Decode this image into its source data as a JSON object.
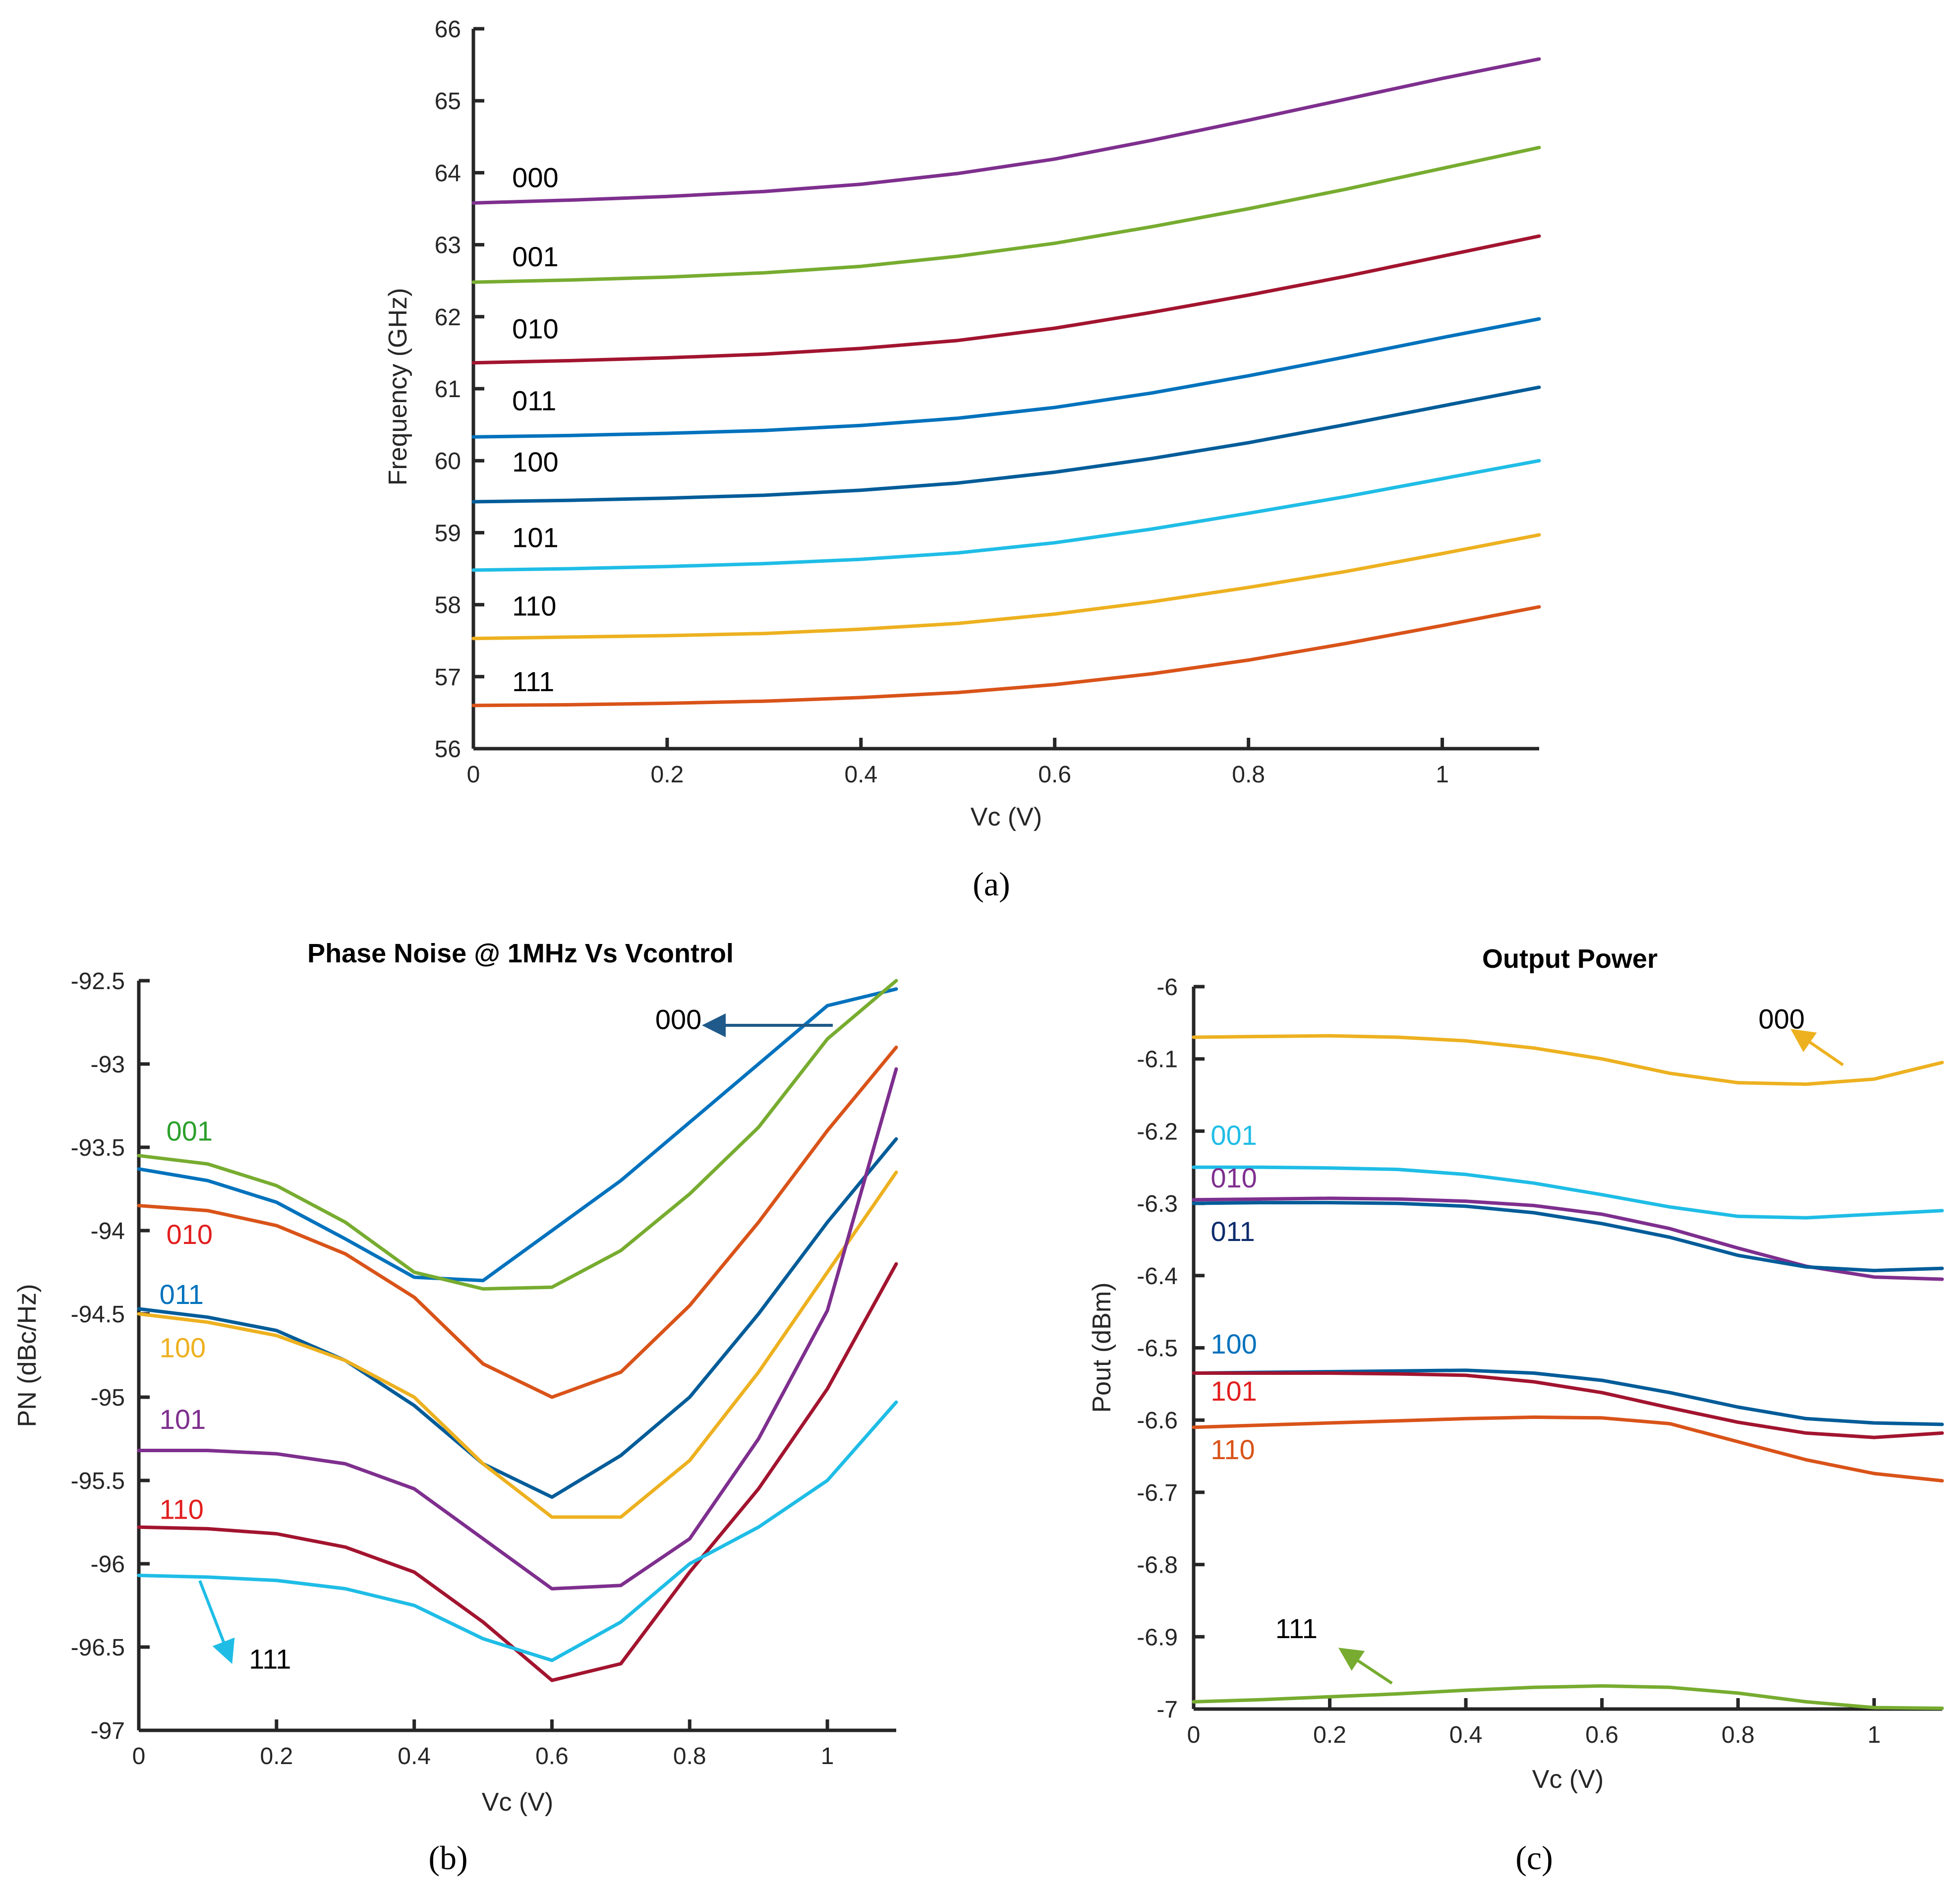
{
  "chart_data": [
    {
      "type": "line",
      "panel_label": "(a)",
      "title": "",
      "xlabel": "Vc (V)",
      "ylabel": "Frequency (GHz)",
      "xlim": [
        0,
        1.1
      ],
      "ylim": [
        56,
        66
      ],
      "xticks": [
        "0",
        "0.2",
        "0.4",
        "0.6",
        "0.8",
        "1"
      ],
      "yticks": [
        "56",
        "57",
        "58",
        "59",
        "60",
        "61",
        "62",
        "63",
        "64",
        "65",
        "66"
      ],
      "x": [
        0,
        0.1,
        0.2,
        0.3,
        0.4,
        0.5,
        0.6,
        0.7,
        0.8,
        0.9,
        1.0,
        1.1
      ],
      "series": [
        {
          "name": "000",
          "color": "#7e2f8e",
          "values": [
            63.58,
            63.62,
            63.67,
            63.74,
            63.84,
            63.99,
            64.19,
            64.45,
            64.73,
            65.02,
            65.31,
            65.58
          ]
        },
        {
          "name": "001",
          "color": "#77ac30",
          "values": [
            62.48,
            62.51,
            62.55,
            62.61,
            62.7,
            62.84,
            63.02,
            63.25,
            63.5,
            63.77,
            64.06,
            64.35
          ]
        },
        {
          "name": "010",
          "color": "#a2142f",
          "values": [
            61.36,
            61.39,
            61.43,
            61.48,
            61.56,
            61.67,
            61.84,
            62.06,
            62.3,
            62.56,
            62.84,
            63.12
          ]
        },
        {
          "name": "011",
          "color": "#0072bd",
          "values": [
            60.33,
            60.35,
            60.38,
            60.42,
            60.49,
            60.59,
            60.74,
            60.94,
            61.18,
            61.44,
            61.71,
            61.97
          ]
        },
        {
          "name": "100",
          "color": "#005c99",
          "values": [
            59.43,
            59.45,
            59.48,
            59.52,
            59.59,
            59.69,
            59.84,
            60.03,
            60.25,
            60.5,
            60.76,
            61.02
          ]
        },
        {
          "name": "101",
          "color": "#1fbde6",
          "values": [
            58.48,
            58.5,
            58.53,
            58.57,
            58.63,
            58.72,
            58.86,
            59.05,
            59.27,
            59.5,
            59.75,
            60.0
          ]
        },
        {
          "name": "110",
          "color": "#edb120",
          "values": [
            57.53,
            57.55,
            57.57,
            57.6,
            57.66,
            57.74,
            57.87,
            58.04,
            58.24,
            58.46,
            58.71,
            58.97
          ]
        },
        {
          "name": "111",
          "color": "#d95319",
          "values": [
            56.6,
            56.61,
            56.63,
            56.66,
            56.71,
            56.78,
            56.89,
            57.04,
            57.23,
            57.46,
            57.71,
            57.97
          ]
        }
      ],
      "annotations": [
        {
          "text": "000",
          "x": 0.04,
          "y": 63.8
        },
        {
          "text": "001",
          "x": 0.04,
          "y": 62.7
        },
        {
          "text": "010",
          "x": 0.04,
          "y": 61.7
        },
        {
          "text": "011",
          "x": 0.04,
          "y": 60.7
        },
        {
          "text": "100",
          "x": 0.04,
          "y": 59.85
        },
        {
          "text": "101",
          "x": 0.04,
          "y": 58.8
        },
        {
          "text": "110",
          "x": 0.04,
          "y": 57.85
        },
        {
          "text": "111",
          "x": 0.04,
          "y": 56.8
        }
      ]
    },
    {
      "type": "line",
      "panel_label": "(b)",
      "title": "Phase Noise @ 1MHz Vs Vcontrol",
      "xlabel": "Vc (V)",
      "ylabel": "PN (dBc/Hz)",
      "xlim": [
        0,
        1.1
      ],
      "ylim": [
        -97,
        -92.5
      ],
      "xticks": [
        "0",
        "0.2",
        "0.4",
        "0.6",
        "0.8",
        "1"
      ],
      "yticks": [
        "-97",
        "-96.5",
        "-96",
        "-95.5",
        "-95",
        "-94.5",
        "-94",
        "-93.5",
        "-93",
        "-92.5"
      ],
      "x": [
        0,
        0.1,
        0.2,
        0.3,
        0.4,
        0.5,
        0.6,
        0.7,
        0.8,
        0.9,
        1.0,
        1.1
      ],
      "series": [
        {
          "name": "000",
          "color": "#0072bd",
          "values": [
            -93.63,
            -93.7,
            -93.83,
            -94.05,
            -94.28,
            -94.3,
            -94.0,
            -93.7,
            -93.35,
            -93.0,
            -92.65,
            -92.55
          ]
        },
        {
          "name": "001",
          "color": "#77ac30",
          "values": [
            -93.55,
            -93.6,
            -93.73,
            -93.95,
            -94.25,
            -94.35,
            -94.34,
            -94.12,
            -93.78,
            -93.38,
            -92.85,
            -92.5
          ]
        },
        {
          "name": "010",
          "color": "#d95319",
          "values": [
            -93.85,
            -93.88,
            -93.97,
            -94.14,
            -94.4,
            -94.8,
            -95.0,
            -94.85,
            -94.45,
            -93.95,
            -93.4,
            -92.9
          ]
        },
        {
          "name": "011",
          "color": "#005c99",
          "values": [
            -94.47,
            -94.52,
            -94.6,
            -94.78,
            -95.05,
            -95.4,
            -95.6,
            -95.35,
            -95.0,
            -94.5,
            -93.95,
            -93.45
          ]
        },
        {
          "name": "100",
          "color": "#edb120",
          "values": [
            -94.5,
            -94.55,
            -94.63,
            -94.78,
            -95.0,
            -95.4,
            -95.72,
            -95.72,
            -95.38,
            -94.85,
            -94.25,
            -93.65
          ]
        },
        {
          "name": "101",
          "color": "#7e2f8e",
          "values": [
            -95.32,
            -95.32,
            -95.34,
            -95.4,
            -95.55,
            -95.85,
            -96.15,
            -96.13,
            -95.85,
            -95.25,
            -94.48,
            -93.03
          ]
        },
        {
          "name": "110",
          "color": "#a2142f",
          "values": [
            -95.78,
            -95.79,
            -95.82,
            -95.9,
            -96.05,
            -96.35,
            -96.7,
            -96.6,
            -96.05,
            -95.55,
            -94.95,
            -94.2
          ]
        },
        {
          "name": "111",
          "color": "#1fbde6",
          "values": [
            -96.07,
            -96.08,
            -96.1,
            -96.15,
            -96.25,
            -96.45,
            -96.58,
            -96.35,
            -96.0,
            -95.78,
            -95.5,
            -95.03
          ]
        }
      ],
      "annotations": [
        {
          "text": "000",
          "x": 0.75,
          "y": -92.79,
          "color": "#000000"
        },
        {
          "text": "001",
          "x": 0.04,
          "y": -93.46,
          "color": "#2ca02c"
        },
        {
          "text": "010",
          "x": 0.04,
          "y": -94.08,
          "color": "#e21e1e"
        },
        {
          "text": "011",
          "x": 0.03,
          "y": -94.44,
          "color": "#0072bd"
        },
        {
          "text": "100",
          "x": 0.03,
          "y": -94.76,
          "color": "#edb120"
        },
        {
          "text": "101",
          "x": 0.03,
          "y": -95.19,
          "color": "#7e2f8e"
        },
        {
          "text": "110",
          "x": 0.03,
          "y": -95.73,
          "color": "#e21e1e"
        },
        {
          "text": "111",
          "x": 0.16,
          "y": -96.63,
          "color": "#000000"
        }
      ]
    },
    {
      "type": "line",
      "panel_label": "(c)",
      "title": "Output Power",
      "xlabel": "Vc (V)",
      "ylabel": "Pout (dBm)",
      "xlim": [
        0,
        1.1
      ],
      "ylim": [
        -7,
        -6
      ],
      "xticks": [
        "0",
        "0.2",
        "0.4",
        "0.6",
        "0.8",
        "1"
      ],
      "yticks": [
        "-7",
        "-6.9",
        "-6.8",
        "-6.7",
        "-6.6",
        "-6.5",
        "-6.4",
        "-6.3",
        "-6.2",
        "-6.1",
        "-6"
      ],
      "x": [
        0,
        0.1,
        0.2,
        0.3,
        0.4,
        0.5,
        0.6,
        0.7,
        0.8,
        0.9,
        1.0,
        1.1
      ],
      "series": [
        {
          "name": "000",
          "color": "#edb120",
          "values": [
            -6.07,
            -6.069,
            -6.068,
            -6.07,
            -6.075,
            -6.085,
            -6.1,
            -6.12,
            -6.133,
            -6.135,
            -6.128,
            -6.105
          ]
        },
        {
          "name": "001",
          "color": "#1fbde6",
          "values": [
            -6.25,
            -6.25,
            -6.251,
            -6.253,
            -6.26,
            -6.272,
            -6.288,
            -6.305,
            -6.318,
            -6.32,
            -6.315,
            -6.31
          ]
        },
        {
          "name": "010",
          "color": "#7e2f8e",
          "values": [
            -6.295,
            -6.294,
            -6.293,
            -6.294,
            -6.297,
            -6.303,
            -6.315,
            -6.335,
            -6.362,
            -6.387,
            -6.402,
            -6.405
          ]
        },
        {
          "name": "011",
          "color": "#005c99",
          "values": [
            -6.3,
            -6.299,
            -6.299,
            -6.3,
            -6.304,
            -6.313,
            -6.328,
            -6.347,
            -6.372,
            -6.388,
            -6.393,
            -6.39
          ]
        },
        {
          "name": "100",
          "color": "#005c99",
          "values": [
            -6.535,
            -6.534,
            -6.533,
            -6.532,
            -6.531,
            -6.535,
            -6.545,
            -6.562,
            -6.582,
            -6.598,
            -6.604,
            -6.606
          ]
        },
        {
          "name": "101",
          "color": "#a2142f",
          "values": [
            -6.535,
            -6.535,
            -6.535,
            -6.536,
            -6.538,
            -6.547,
            -6.562,
            -6.583,
            -6.603,
            -6.618,
            -6.624,
            -6.618
          ]
        },
        {
          "name": "110",
          "color": "#d95319",
          "values": [
            -6.61,
            -6.607,
            -6.604,
            -6.601,
            -6.598,
            -6.596,
            -6.597,
            -6.605,
            -6.63,
            -6.655,
            -6.674,
            -6.684
          ]
        },
        {
          "name": "111",
          "color": "#77ac30",
          "values": [
            -6.99,
            -6.987,
            -6.983,
            -6.979,
            -6.974,
            -6.97,
            -6.968,
            -6.97,
            -6.978,
            -6.99,
            -6.998,
            -6.999
          ]
        }
      ],
      "annotations": [
        {
          "text": "000",
          "x": 0.83,
          "y": -6.058,
          "color": "#000000"
        },
        {
          "text": "001",
          "x": 0.025,
          "y": -6.219,
          "color": "#1fbde6"
        },
        {
          "text": "010",
          "x": 0.025,
          "y": -6.278,
          "color": "#7e2f8e"
        },
        {
          "text": "011",
          "x": 0.025,
          "y": -6.352,
          "color": "#0d2c6c"
        },
        {
          "text": "100",
          "x": 0.025,
          "y": -6.508,
          "color": "#0072bd"
        },
        {
          "text": "101",
          "x": 0.025,
          "y": -6.573,
          "color": "#e21e1e"
        },
        {
          "text": "110",
          "x": 0.025,
          "y": -6.654,
          "color": "#d95319"
        },
        {
          "text": "111",
          "x": 0.12,
          "y": -6.902,
          "color": "#000000"
        }
      ]
    }
  ]
}
